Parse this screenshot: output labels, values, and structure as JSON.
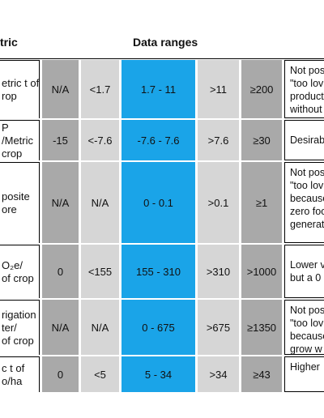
{
  "header": {
    "metric": "tric",
    "ranges": "Data ranges"
  },
  "rows": [
    {
      "metric": [
        "etric t of",
        "rop"
      ],
      "values": [
        "N/A",
        "<1.7",
        "1.7 - 11",
        ">11",
        "≥200"
      ],
      "note": [
        "Not pos",
        "\"too lov",
        "product",
        "without"
      ]
    },
    {
      "metric": [
        "P",
        "/Metric",
        "crop"
      ],
      "values": [
        "-15",
        "<-7.6",
        "-7.6 - 7.6",
        ">7.6",
        "≥30"
      ],
      "note": [
        "Desirab"
      ]
    },
    {
      "metric": [
        "posite",
        "ore"
      ],
      "values": [
        "N/A",
        "N/A",
        "0 - 0.1",
        ">0.1",
        "≥1"
      ],
      "note": [
        "Not pos",
        "\"too lov",
        "because",
        "zero foo",
        "generat"
      ]
    },
    {
      "metric": [
        "O₂e/",
        "of crop"
      ],
      "values": [
        "0",
        "<155",
        "155 - 310",
        ">310",
        ">1000"
      ],
      "note": [
        "Lower v",
        "but a 0"
      ]
    },
    {
      "metric": [
        "rigation",
        "ter/",
        "of crop"
      ],
      "values": [
        "N/A",
        "N/A",
        "0 - 675",
        ">675",
        "≥1350"
      ],
      "note": [
        "Not pos",
        "\"too lov",
        "because",
        "grow w"
      ]
    },
    {
      "metric": [
        "c t of",
        "o/ha"
      ],
      "values": [
        "0",
        "<5",
        "5 - 34",
        ">34",
        "≥43"
      ],
      "note": [
        "Higher"
      ]
    }
  ]
}
